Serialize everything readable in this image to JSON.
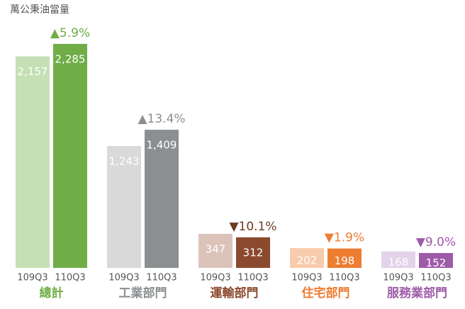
{
  "chart_data": {
    "type": "bar",
    "y_label": "萬公秉油當量",
    "categories": [
      "總計",
      "工業部門",
      "運輸部門",
      "住宅部門",
      "服務業部門"
    ],
    "category_colors": [
      "#70ad47",
      "#8c8f91",
      "#8b4a2d",
      "#ed7d31",
      "#9e5ba8"
    ],
    "series": [
      {
        "name": "109Q3",
        "colors": [
          "#c5e0b4",
          "#d9d9d9",
          "#dcc3b9",
          "#f8cbad",
          "#e4d2ea"
        ],
        "values": [
          2157,
          1243,
          347,
          202,
          168
        ],
        "value_labels": [
          "2,157",
          "1,243",
          "347",
          "202",
          "168"
        ]
      },
      {
        "name": "110Q3",
        "colors": [
          "#70ad47",
          "#8c8f91",
          "#8b4a2d",
          "#ed7d31",
          "#9e5ba8"
        ],
        "values": [
          2285,
          1409,
          312,
          198,
          152
        ],
        "value_labels": [
          "2,285",
          "1,409",
          "312",
          "198",
          "152"
        ]
      }
    ],
    "annotations": [
      "▲5.9%",
      "▲13.4%",
      "▼10.1%",
      "▼1.9%",
      "▼9.0%"
    ],
    "annotation_colors": [
      "#70ad47",
      "#8c8f91",
      "#6b3a22",
      "#ed7d31",
      "#9e5ba8"
    ],
    "ylim": [
      0,
      2400
    ]
  }
}
